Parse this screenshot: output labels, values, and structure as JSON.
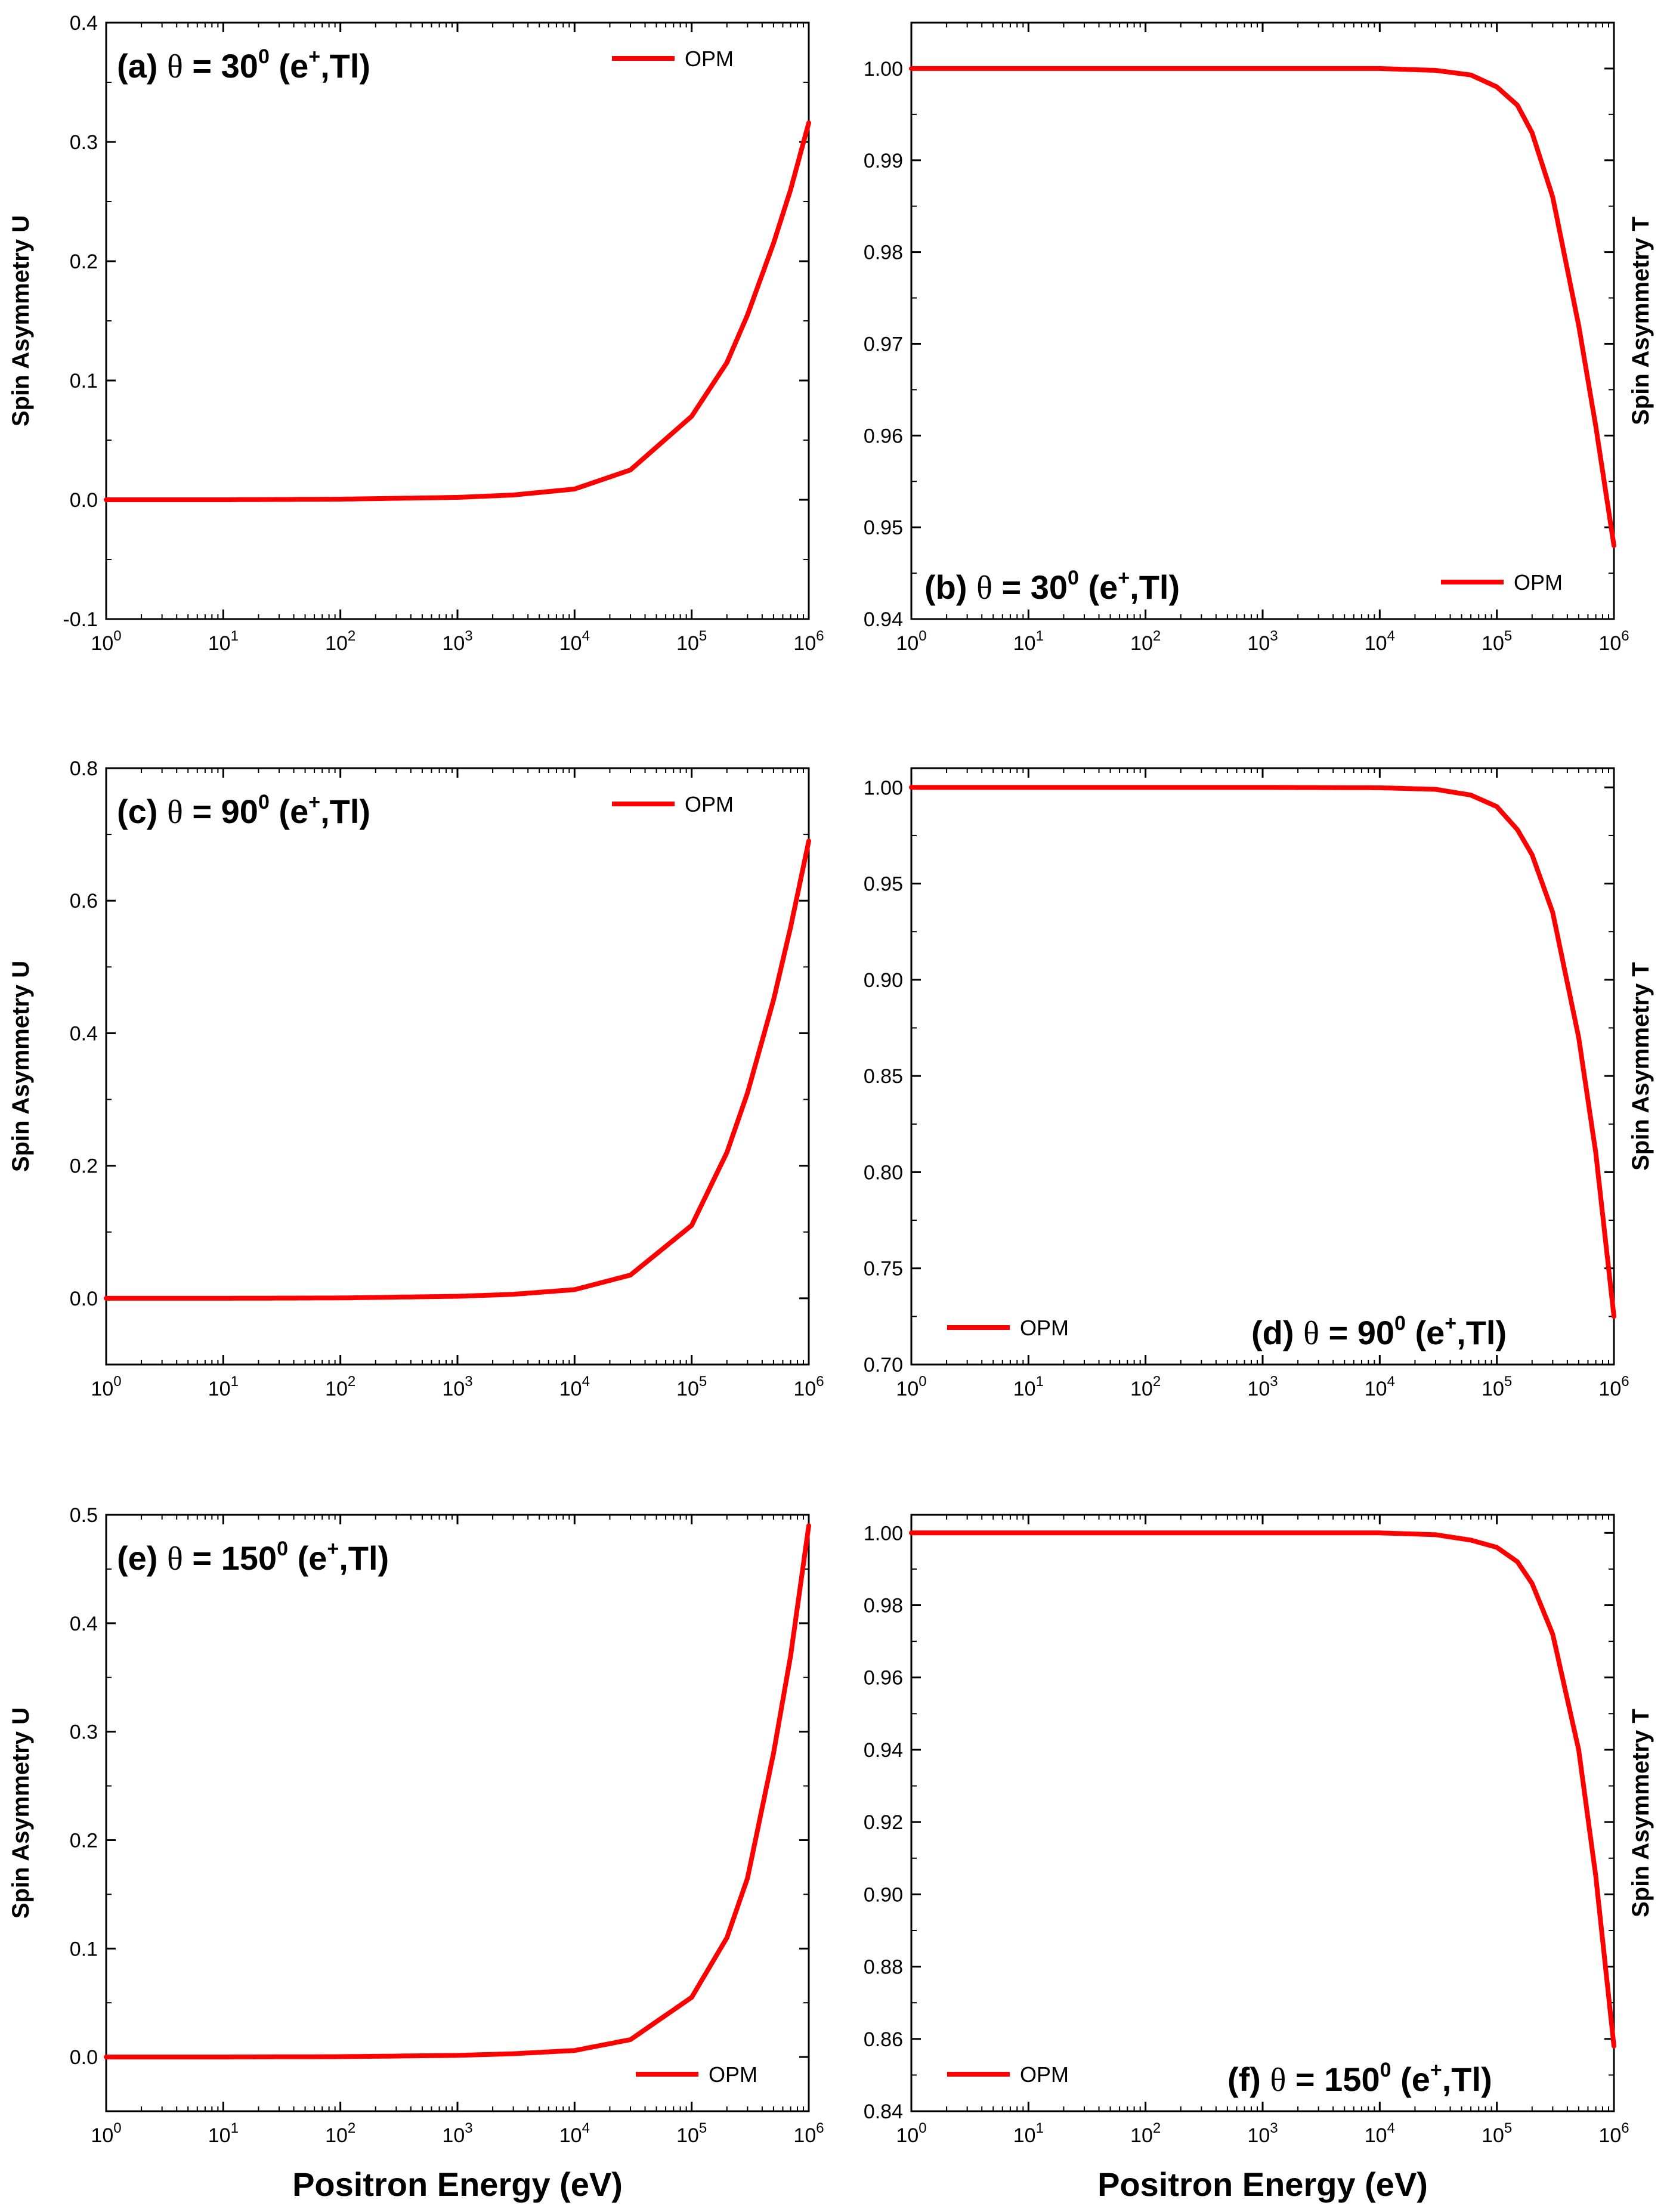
{
  "figure": {
    "xlabel_bottom": "Positron Energy (eV)"
  },
  "chart_data": [
    {
      "id": "a",
      "type": "line",
      "panel_label": {
        "prefix": "(a) ",
        "theta": "θ",
        "eq": " = 30",
        "deg": "0",
        "proj": " (e",
        "charge": "+",
        "target": ",Tl)"
      },
      "ylabel": "Spin Asymmetry U",
      "ylabel_side": "left",
      "xscale": "log",
      "xlim": [
        1,
        1000000
      ],
      "ylim": [
        -0.1,
        0.4
      ],
      "yticks": [
        "-0.1",
        "0.0",
        "0.1",
        "0.2",
        "0.3",
        "0.4"
      ],
      "xticks": [
        {
          "base": "10",
          "exp": "0"
        },
        {
          "base": "10",
          "exp": "1"
        },
        {
          "base": "10",
          "exp": "2"
        },
        {
          "base": "10",
          "exp": "3"
        },
        {
          "base": "10",
          "exp": "4"
        },
        {
          "base": "10",
          "exp": "5"
        },
        {
          "base": "10",
          "exp": "6"
        }
      ],
      "legend": {
        "label": "OPM",
        "position": "top-right"
      },
      "series": [
        {
          "name": "OPM",
          "color": "#ff0000",
          "x": [
            1,
            10,
            100,
            1000,
            3000,
            10000,
            30000,
            100000,
            200000,
            300000,
            500000,
            700000,
            1000000
          ],
          "y": [
            0,
            0,
            0.0005,
            0.002,
            0.004,
            0.009,
            0.025,
            0.07,
            0.115,
            0.155,
            0.215,
            0.26,
            0.316
          ]
        }
      ]
    },
    {
      "id": "b",
      "type": "line",
      "panel_label": {
        "prefix": "(b) ",
        "theta": "θ",
        "eq": " = 30",
        "deg": "0",
        "proj": " (e",
        "charge": "+",
        "target": ",Tl)"
      },
      "ylabel": "Spin Asymmetry T",
      "ylabel_side": "right",
      "xscale": "log",
      "xlim": [
        1,
        1000000
      ],
      "ylim": [
        0.94,
        1.005
      ],
      "yticks": [
        "0.94",
        "0.95",
        "0.96",
        "0.97",
        "0.98",
        "0.99",
        "1.00"
      ],
      "xticks": [
        {
          "base": "10",
          "exp": "0"
        },
        {
          "base": "10",
          "exp": "1"
        },
        {
          "base": "10",
          "exp": "2"
        },
        {
          "base": "10",
          "exp": "3"
        },
        {
          "base": "10",
          "exp": "4"
        },
        {
          "base": "10",
          "exp": "5"
        },
        {
          "base": "10",
          "exp": "6"
        }
      ],
      "legend": {
        "label": "OPM",
        "position": "bottom-right"
      },
      "series": [
        {
          "name": "OPM",
          "color": "#ff0000",
          "x": [
            1,
            10,
            100,
            1000,
            10000,
            30000,
            60000,
            100000,
            150000,
            200000,
            300000,
            500000,
            700000,
            1000000
          ],
          "y": [
            1.0,
            1.0,
            1.0,
            1.0,
            1.0,
            0.9998,
            0.9993,
            0.998,
            0.996,
            0.993,
            0.986,
            0.972,
            0.961,
            0.948
          ]
        }
      ]
    },
    {
      "id": "c",
      "type": "line",
      "panel_label": {
        "prefix": "(c) ",
        "theta": "θ",
        "eq": " = 90",
        "deg": "0",
        "proj": " (e",
        "charge": "+",
        "target": ",Tl)"
      },
      "ylabel": "Spin Asymmetry U",
      "ylabel_side": "left",
      "xscale": "log",
      "xlim": [
        1,
        1000000
      ],
      "ylim": [
        -0.1,
        0.8
      ],
      "yticks": [
        "0.0",
        "0.2",
        "0.4",
        "0.6",
        "0.8"
      ],
      "xticks": [
        {
          "base": "10",
          "exp": "0"
        },
        {
          "base": "10",
          "exp": "1"
        },
        {
          "base": "10",
          "exp": "2"
        },
        {
          "base": "10",
          "exp": "3"
        },
        {
          "base": "10",
          "exp": "4"
        },
        {
          "base": "10",
          "exp": "5"
        },
        {
          "base": "10",
          "exp": "6"
        }
      ],
      "legend": {
        "label": "OPM",
        "position": "top-right"
      },
      "series": [
        {
          "name": "OPM",
          "color": "#ff0000",
          "x": [
            1,
            10,
            100,
            1000,
            3000,
            10000,
            30000,
            100000,
            200000,
            300000,
            500000,
            700000,
            1000000
          ],
          "y": [
            0,
            0,
            0.0005,
            0.003,
            0.006,
            0.013,
            0.035,
            0.11,
            0.22,
            0.31,
            0.45,
            0.56,
            0.69
          ]
        }
      ]
    },
    {
      "id": "d",
      "type": "line",
      "panel_label": {
        "prefix": "(d) ",
        "theta": "θ",
        "eq": " = 90",
        "deg": "0",
        "proj": " (e",
        "charge": "+",
        "target": ",Tl)"
      },
      "ylabel": "Spin Asymmetry T",
      "ylabel_side": "right",
      "xscale": "log",
      "xlim": [
        1,
        1000000
      ],
      "ylim": [
        0.7,
        1.01
      ],
      "yticks": [
        "0.70",
        "0.75",
        "0.80",
        "0.85",
        "0.90",
        "0.95",
        "1.00"
      ],
      "xticks": [
        {
          "base": "10",
          "exp": "0"
        },
        {
          "base": "10",
          "exp": "1"
        },
        {
          "base": "10",
          "exp": "2"
        },
        {
          "base": "10",
          "exp": "3"
        },
        {
          "base": "10",
          "exp": "4"
        },
        {
          "base": "10",
          "exp": "5"
        },
        {
          "base": "10",
          "exp": "6"
        }
      ],
      "legend": {
        "label": "OPM",
        "position": "bottom-left"
      },
      "series": [
        {
          "name": "OPM",
          "color": "#ff0000",
          "x": [
            1,
            10,
            100,
            1000,
            10000,
            30000,
            60000,
            100000,
            150000,
            200000,
            300000,
            500000,
            700000,
            1000000
          ],
          "y": [
            1.0,
            1.0,
            1.0,
            1.0,
            0.9998,
            0.999,
            0.996,
            0.99,
            0.978,
            0.965,
            0.935,
            0.87,
            0.81,
            0.725
          ]
        }
      ]
    },
    {
      "id": "e",
      "type": "line",
      "panel_label": {
        "prefix": "(e) ",
        "theta": "θ",
        "eq": " = 150",
        "deg": "0",
        "proj": " (e",
        "charge": "+",
        "target": ",Tl)"
      },
      "ylabel": "Spin Asymmetry U",
      "ylabel_side": "left",
      "xscale": "log",
      "xlim": [
        1,
        1000000
      ],
      "ylim": [
        -0.05,
        0.5
      ],
      "yticks": [
        "0.0",
        "0.1",
        "0.2",
        "0.3",
        "0.4",
        "0.5"
      ],
      "xticks": [
        {
          "base": "10",
          "exp": "0"
        },
        {
          "base": "10",
          "exp": "1"
        },
        {
          "base": "10",
          "exp": "2"
        },
        {
          "base": "10",
          "exp": "3"
        },
        {
          "base": "10",
          "exp": "4"
        },
        {
          "base": "10",
          "exp": "5"
        },
        {
          "base": "10",
          "exp": "6"
        }
      ],
      "legend": {
        "label": "OPM",
        "position": "bottom-right"
      },
      "series": [
        {
          "name": "OPM",
          "color": "#ff0000",
          "x": [
            1,
            10,
            100,
            1000,
            3000,
            10000,
            30000,
            100000,
            200000,
            300000,
            500000,
            700000,
            1000000
          ],
          "y": [
            0,
            0,
            0.0003,
            0.0015,
            0.003,
            0.006,
            0.016,
            0.055,
            0.11,
            0.165,
            0.28,
            0.37,
            0.49
          ]
        }
      ]
    },
    {
      "id": "f",
      "type": "line",
      "panel_label": {
        "prefix": "(f) ",
        "theta": "θ",
        "eq": " = 150",
        "deg": "0",
        "proj": " (e",
        "charge": "+",
        "target": ",Tl)"
      },
      "ylabel": "Spin Asymmetry T",
      "ylabel_side": "right",
      "xscale": "log",
      "xlim": [
        1,
        1000000
      ],
      "ylim": [
        0.84,
        1.005
      ],
      "yticks": [
        "0.84",
        "0.86",
        "0.88",
        "0.90",
        "0.92",
        "0.94",
        "0.96",
        "0.98",
        "1.00"
      ],
      "xticks": [
        {
          "base": "10",
          "exp": "0"
        },
        {
          "base": "10",
          "exp": "1"
        },
        {
          "base": "10",
          "exp": "2"
        },
        {
          "base": "10",
          "exp": "3"
        },
        {
          "base": "10",
          "exp": "4"
        },
        {
          "base": "10",
          "exp": "5"
        },
        {
          "base": "10",
          "exp": "6"
        }
      ],
      "legend": {
        "label": "OPM",
        "position": "bottom-left"
      },
      "series": [
        {
          "name": "OPM",
          "color": "#ff0000",
          "x": [
            1,
            10,
            100,
            1000,
            10000,
            30000,
            60000,
            100000,
            150000,
            200000,
            300000,
            500000,
            700000,
            1000000
          ],
          "y": [
            1.0,
            1.0,
            1.0,
            1.0,
            1.0,
            0.9995,
            0.998,
            0.996,
            0.992,
            0.986,
            0.972,
            0.94,
            0.905,
            0.858
          ]
        }
      ]
    }
  ]
}
